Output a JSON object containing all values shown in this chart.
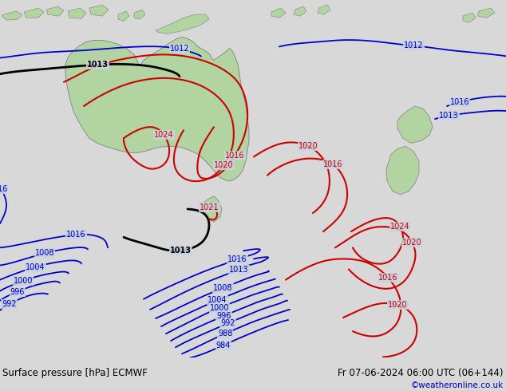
{
  "title_left": "Surface pressure [hPa] ECMWF",
  "title_right": "Fr 07-06-2024 06:00 UTC (06+144)",
  "copyright": "©weatheronline.co.uk",
  "bg_color": "#c8d4e0",
  "land_color": "#b2d4a0",
  "land_edge": "#808080",
  "font_color_black": "#000000",
  "copyright_color": "#0000bb",
  "footer_bg": "#d8d8d8",
  "blue": "#0000cc",
  "red": "#cc0000",
  "black": "#000000",
  "fig_w": 6.34,
  "fig_h": 4.9,
  "dpi": 100
}
